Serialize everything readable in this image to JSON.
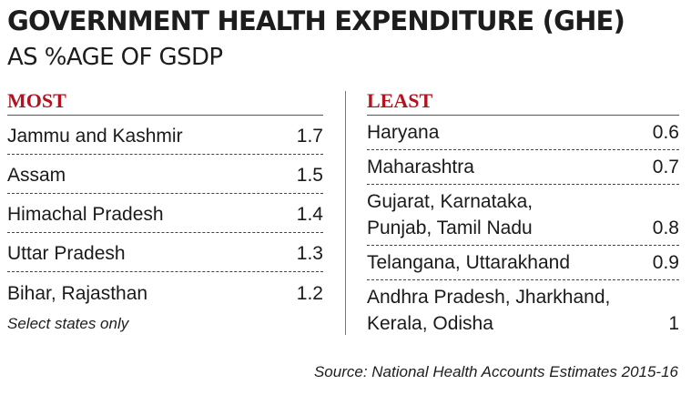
{
  "chart_data": {
    "type": "table",
    "title": "GOVERNMENT HEALTH EXPENDITURE (GHE)",
    "subtitle": "AS %AGE OF GSDP",
    "most": {
      "heading": "MOST",
      "rows": [
        {
          "state": "Jammu and Kashmir",
          "value": "1.7"
        },
        {
          "state": "Assam",
          "value": "1.5"
        },
        {
          "state": "Himachal Pradesh",
          "value": "1.4"
        },
        {
          "state": "Uttar Pradesh",
          "value": "1.3"
        },
        {
          "state": "Bihar, Rajasthan",
          "value": "1.2"
        }
      ]
    },
    "least": {
      "heading": "LEAST",
      "rows": [
        {
          "state": "Haryana",
          "value": "0.6"
        },
        {
          "state": "Maharashtra",
          "value": "0.7"
        },
        {
          "state": "Gujarat, Karnataka, Punjab, Tamil Nadu",
          "value": "0.8"
        },
        {
          "state": "Telangana, Uttarakhand",
          "value": "0.9"
        },
        {
          "state": "Andhra Pradesh, Jharkhand, Kerala, Odisha",
          "value": "1"
        }
      ]
    },
    "note": "Select states only",
    "source": "Source: National Health Accounts Estimates 2015-16"
  },
  "colors": {
    "heading": "#b3121f",
    "text": "#1d1d1d"
  }
}
